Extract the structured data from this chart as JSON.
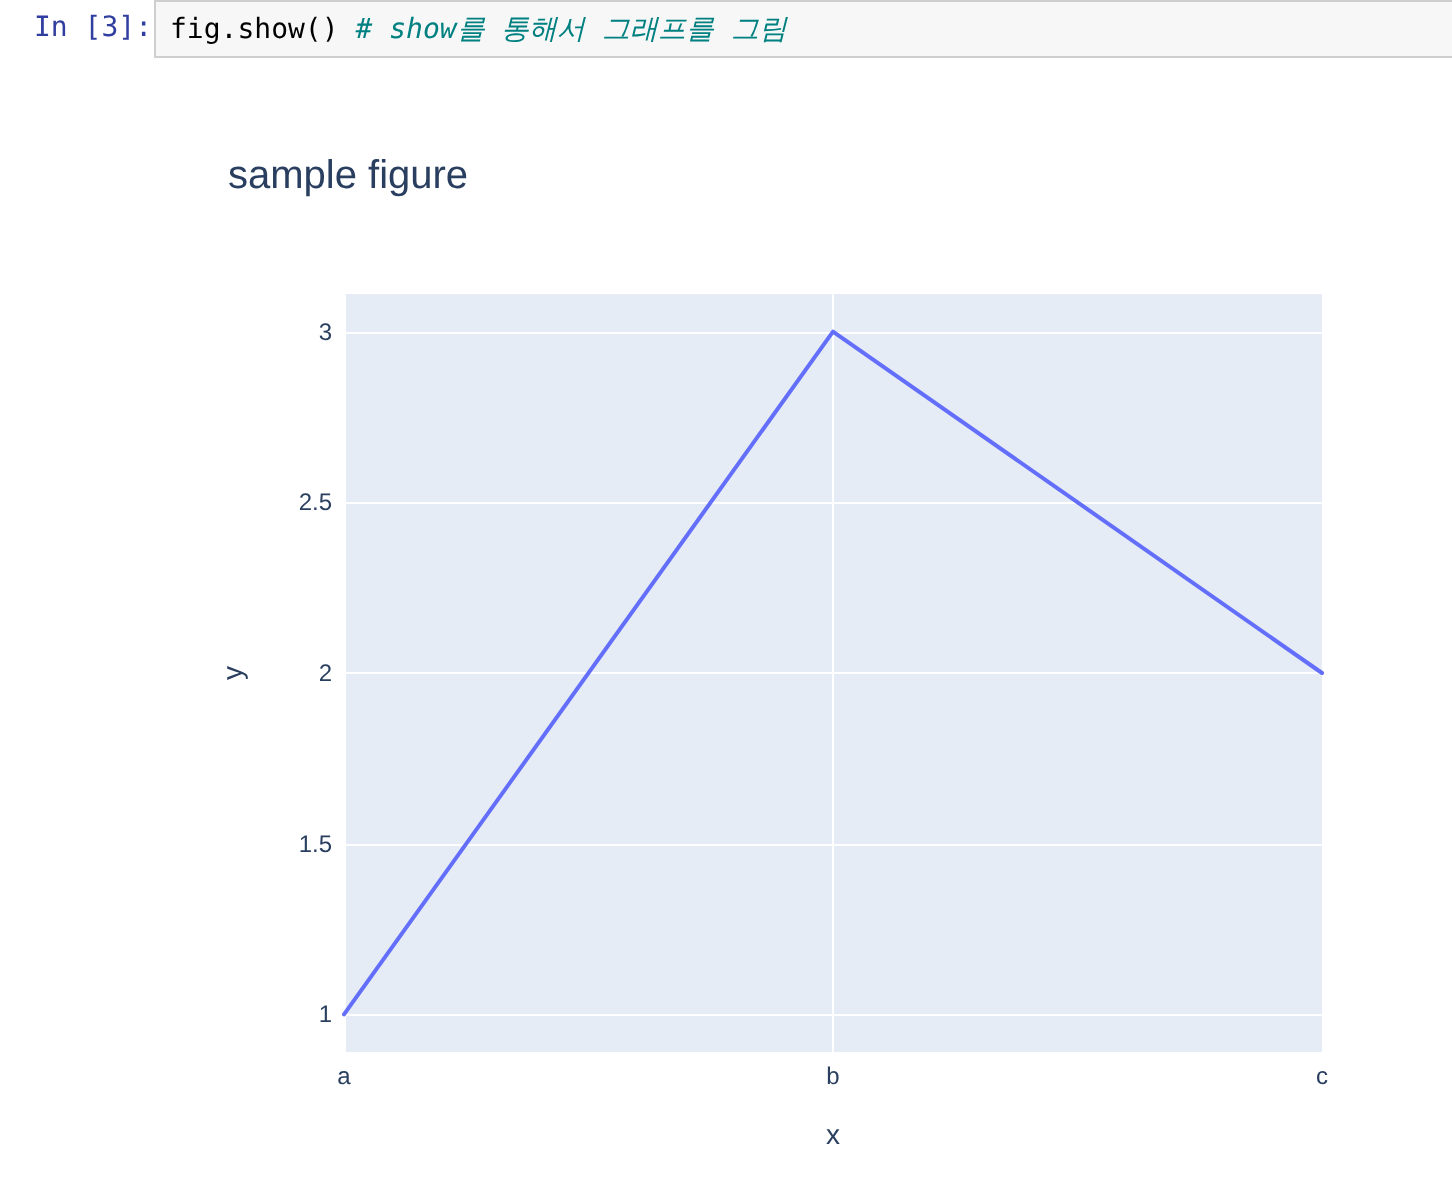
{
  "chart_data": {
    "type": "line",
    "title": "sample figure",
    "xlabel": "x",
    "ylabel": "y",
    "annotations": [
      "In [3]:",
      "fig.show()",
      "# show를 통해서 그래프를 그림"
    ],
    "categories": [
      "a",
      "b",
      "c"
    ],
    "series": [
      {
        "color": "#636efa",
        "values": [
          1,
          3,
          2
        ]
      }
    ],
    "ylim": [
      0.89,
      3.11
    ],
    "yticks": [
      1,
      1.5,
      2,
      2.5,
      3
    ],
    "grid": true,
    "marker": "none",
    "line_style": "solid"
  }
}
